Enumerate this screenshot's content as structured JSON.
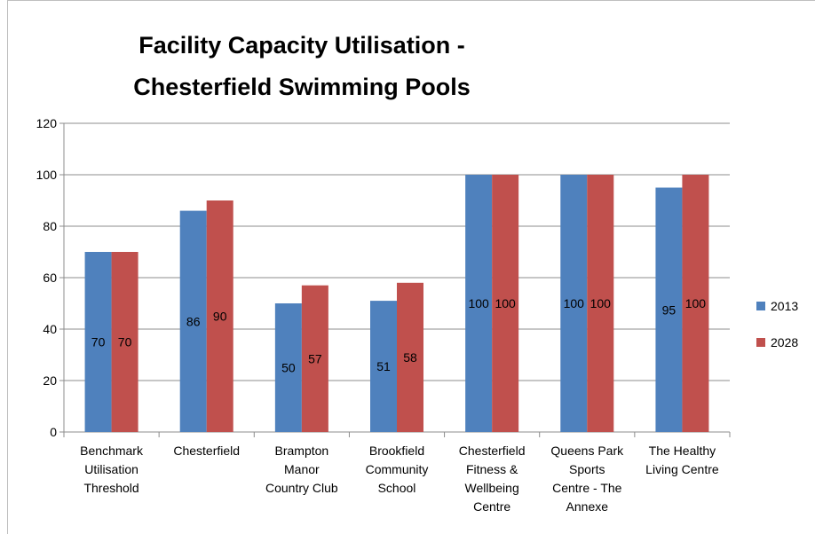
{
  "chart_data": {
    "type": "bar",
    "title": "Facility Capacity Utilisation -\nChesterfield Swimming Pools",
    "categories": [
      "Benchmark\nUtilisation\nThreshold",
      "Chesterfield",
      "Brampton\nManor\nCountry Club",
      "Brookfield\nCommunity\nSchool",
      "Chesterfield\nFitness &\nWellbeing\nCentre",
      "Queens Park\nSports\nCentre - The\nAnnexe",
      "The Healthy\nLiving Centre"
    ],
    "series": [
      {
        "name": "2013",
        "color": "#4f81bd",
        "values": [
          70,
          86,
          50,
          51,
          100,
          100,
          95
        ]
      },
      {
        "name": "2028",
        "color": "#c0504d",
        "values": [
          70,
          90,
          57,
          58,
          100,
          100,
          100
        ]
      }
    ],
    "ylim": [
      0,
      120
    ],
    "yticks": [
      0,
      20,
      40,
      60,
      80,
      100,
      120
    ],
    "grid": true,
    "legend": "right"
  }
}
